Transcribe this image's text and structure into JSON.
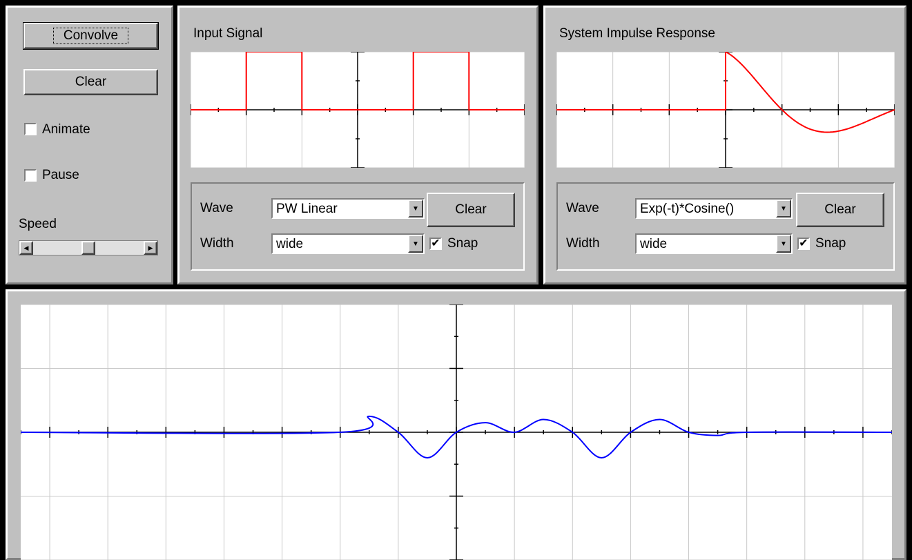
{
  "controls": {
    "convolve_label": "Convolve",
    "clear_label": "Clear",
    "animate_label": "Animate",
    "animate_checked": false,
    "pause_label": "Pause",
    "pause_checked": false,
    "speed_label": "Speed",
    "speed_value": 0.5
  },
  "input_panel": {
    "title": "Input Signal",
    "wave_label": "Wave",
    "wave_value": "PW Linear",
    "width_label": "Width",
    "width_value": "wide",
    "clear_label": "Clear",
    "snap_label": "Snap",
    "snap_checked": true
  },
  "impulse_panel": {
    "title": "System Impulse Response",
    "wave_label": "Wave",
    "wave_value": "Exp(-t)*Cosine()",
    "width_label": "Width",
    "width_value": "wide",
    "clear_label": "Clear",
    "snap_label": "Snap",
    "snap_checked": true
  },
  "colors": {
    "input_signal": "#ff0000",
    "impulse_response": "#ff0000",
    "output": "#0000ff",
    "grid": "#c8c8c8",
    "axis": "#000000"
  },
  "chart_data": [
    {
      "type": "line",
      "name": "input",
      "xlim": [
        -3,
        3
      ],
      "ylim": [
        -1,
        1
      ],
      "points": [
        [
          -3,
          0
        ],
        [
          -2,
          0
        ],
        [
          -2,
          1
        ],
        [
          -1,
          1
        ],
        [
          -1,
          0
        ],
        [
          1,
          0
        ],
        [
          1,
          1
        ],
        [
          2,
          1
        ],
        [
          2,
          0
        ],
        [
          3,
          0
        ]
      ]
    },
    {
      "type": "line",
      "name": "impulse",
      "xlim": [
        -3,
        3
      ],
      "ylim": [
        -1,
        1
      ],
      "function": "exp(-t/2)*cos(pi*t/2) for t>=0, else 0"
    },
    {
      "type": "line",
      "name": "output",
      "xlim": [
        -7.5,
        7.5
      ],
      "ylim": [
        -2,
        2
      ],
      "points": [
        [
          -7.5,
          0
        ],
        [
          -2,
          0
        ],
        [
          -1.5,
          0.25
        ],
        [
          -1,
          0
        ],
        [
          -0.5,
          -0.4
        ],
        [
          0,
          0
        ],
        [
          0.5,
          0.15
        ],
        [
          1,
          0
        ],
        [
          1.5,
          0.2
        ],
        [
          2,
          0
        ],
        [
          2.5,
          -0.4
        ],
        [
          3,
          0
        ],
        [
          3.5,
          0.2
        ],
        [
          4,
          0
        ],
        [
          4.5,
          -0.05
        ],
        [
          5,
          0
        ],
        [
          7.5,
          0
        ]
      ]
    }
  ]
}
